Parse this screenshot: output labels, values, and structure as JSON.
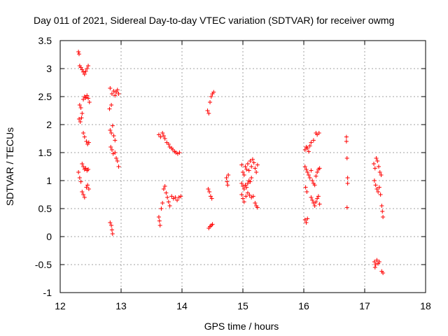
{
  "chart_data": {
    "type": "scatter",
    "title": "Day 011 of 2021, Sidereal Day-to-day VTEC variation (SDTVAR) for receiver owmg",
    "xlabel": "GPS time / hours",
    "ylabel": "SDTVAR / TECUs",
    "xlim": [
      12,
      18
    ],
    "ylim": [
      -1,
      3.5
    ],
    "xticks": [
      12,
      13,
      14,
      15,
      16,
      17,
      18
    ],
    "xtick_labels": [
      "12",
      "13",
      "14",
      "15",
      "16",
      "17",
      "18"
    ],
    "yticks": [
      -1,
      -0.5,
      0,
      0.5,
      1,
      1.5,
      2,
      2.5,
      3,
      3.5
    ],
    "ytick_labels": [
      "-1",
      "-0.5",
      "0",
      "0.5",
      "1",
      "1.5",
      "2",
      "2.5",
      "3",
      "3.5"
    ],
    "grid": true,
    "marker": "+",
    "color": "#ff0000",
    "series": [
      {
        "name": "SDTVAR",
        "points": [
          [
            12.3,
            3.3
          ],
          [
            12.31,
            3.26
          ],
          [
            12.32,
            3.05
          ],
          [
            12.34,
            3.02
          ],
          [
            12.36,
            2.98
          ],
          [
            12.38,
            2.94
          ],
          [
            12.4,
            2.9
          ],
          [
            12.42,
            2.95
          ],
          [
            12.44,
            3.0
          ],
          [
            12.46,
            3.05
          ],
          [
            12.32,
            2.35
          ],
          [
            12.34,
            2.3
          ],
          [
            12.36,
            2.2
          ],
          [
            12.38,
            2.45
          ],
          [
            12.4,
            2.5
          ],
          [
            12.42,
            2.48
          ],
          [
            12.44,
            2.52
          ],
          [
            12.46,
            2.47
          ],
          [
            12.48,
            2.4
          ],
          [
            12.31,
            2.1
          ],
          [
            12.33,
            2.05
          ],
          [
            12.35,
            2.12
          ],
          [
            12.38,
            1.85
          ],
          [
            12.4,
            1.78
          ],
          [
            12.43,
            1.7
          ],
          [
            12.45,
            1.65
          ],
          [
            12.47,
            1.68
          ],
          [
            12.3,
            1.15
          ],
          [
            12.32,
            1.05
          ],
          [
            12.34,
            0.98
          ],
          [
            12.36,
            1.3
          ],
          [
            12.38,
            1.25
          ],
          [
            12.4,
            1.2
          ],
          [
            12.42,
            1.22
          ],
          [
            12.44,
            1.18
          ],
          [
            12.46,
            1.2
          ],
          [
            12.36,
            0.8
          ],
          [
            12.38,
            0.75
          ],
          [
            12.4,
            0.7
          ],
          [
            12.43,
            0.88
          ],
          [
            12.45,
            0.92
          ],
          [
            12.47,
            0.85
          ],
          [
            12.82,
            2.65
          ],
          [
            12.85,
            2.55
          ],
          [
            12.88,
            2.6
          ],
          [
            12.9,
            2.52
          ],
          [
            12.92,
            2.58
          ],
          [
            12.94,
            2.62
          ],
          [
            12.96,
            2.55
          ],
          [
            12.84,
            2.35
          ],
          [
            12.81,
            2.28
          ],
          [
            12.82,
            1.9
          ],
          [
            12.84,
            1.85
          ],
          [
            12.86,
            1.98
          ],
          [
            12.88,
            1.8
          ],
          [
            12.9,
            1.72
          ],
          [
            12.83,
            1.6
          ],
          [
            12.85,
            1.55
          ],
          [
            12.87,
            1.48
          ],
          [
            12.9,
            1.5
          ],
          [
            12.92,
            1.4
          ],
          [
            12.94,
            1.35
          ],
          [
            12.96,
            1.25
          ],
          [
            12.82,
            0.25
          ],
          [
            12.84,
            0.2
          ],
          [
            12.85,
            0.12
          ],
          [
            12.86,
            0.05
          ],
          [
            13.62,
            1.82
          ],
          [
            13.65,
            1.78
          ],
          [
            13.68,
            1.85
          ],
          [
            13.7,
            1.8
          ],
          [
            13.72,
            1.75
          ],
          [
            13.75,
            1.68
          ],
          [
            13.78,
            1.65
          ],
          [
            13.8,
            1.6
          ],
          [
            13.83,
            1.58
          ],
          [
            13.85,
            1.55
          ],
          [
            13.88,
            1.52
          ],
          [
            13.9,
            1.5
          ],
          [
            13.93,
            1.48
          ],
          [
            13.96,
            1.5
          ],
          [
            13.62,
            0.35
          ],
          [
            13.63,
            0.28
          ],
          [
            13.64,
            0.2
          ],
          [
            13.66,
            0.5
          ],
          [
            13.68,
            0.6
          ],
          [
            13.7,
            0.85
          ],
          [
            13.72,
            0.9
          ],
          [
            13.74,
            0.78
          ],
          [
            13.76,
            0.7
          ],
          [
            13.78,
            0.62
          ],
          [
            13.8,
            0.55
          ],
          [
            13.83,
            0.72
          ],
          [
            13.86,
            0.68
          ],
          [
            13.89,
            0.7
          ],
          [
            13.92,
            0.65
          ],
          [
            13.95,
            0.7
          ],
          [
            13.98,
            0.72
          ],
          [
            14.42,
            2.25
          ],
          [
            14.44,
            2.2
          ],
          [
            14.46,
            2.4
          ],
          [
            14.48,
            2.5
          ],
          [
            14.5,
            2.55
          ],
          [
            14.52,
            2.58
          ],
          [
            14.43,
            0.85
          ],
          [
            14.45,
            0.8
          ],
          [
            14.47,
            0.72
          ],
          [
            14.49,
            0.68
          ],
          [
            14.44,
            0.15
          ],
          [
            14.46,
            0.18
          ],
          [
            14.48,
            0.2
          ],
          [
            14.5,
            0.22
          ],
          [
            14.73,
            1.05
          ],
          [
            14.74,
            0.98
          ],
          [
            14.75,
            0.92
          ],
          [
            14.76,
            1.1
          ],
          [
            14.98,
            1.28
          ],
          [
            15.0,
            1.15
          ],
          [
            15.02,
            1.1
          ],
          [
            15.04,
            1.25
          ],
          [
            15.06,
            1.2
          ],
          [
            15.08,
            1.3
          ],
          [
            15.1,
            1.18
          ],
          [
            15.12,
            1.35
          ],
          [
            15.14,
            1.25
          ],
          [
            15.16,
            1.38
          ],
          [
            15.18,
            1.32
          ],
          [
            15.2,
            1.22
          ],
          [
            15.22,
            1.15
          ],
          [
            15.24,
            1.28
          ],
          [
            14.98,
            0.95
          ],
          [
            15.0,
            0.9
          ],
          [
            15.02,
            0.85
          ],
          [
            15.04,
            0.92
          ],
          [
            15.06,
            0.88
          ],
          [
            15.08,
            0.95
          ],
          [
            15.1,
            1.0
          ],
          [
            15.12,
            0.98
          ],
          [
            15.14,
            1.05
          ],
          [
            14.98,
            0.75
          ],
          [
            15.0,
            0.68
          ],
          [
            15.02,
            0.62
          ],
          [
            15.05,
            0.72
          ],
          [
            15.08,
            0.78
          ],
          [
            15.11,
            0.74
          ],
          [
            15.14,
            0.7
          ],
          [
            15.17,
            0.72
          ],
          [
            15.2,
            0.6
          ],
          [
            15.22,
            0.55
          ],
          [
            15.24,
            0.52
          ],
          [
            16.02,
            1.55
          ],
          [
            16.04,
            1.6
          ],
          [
            16.06,
            1.58
          ],
          [
            16.08,
            1.52
          ],
          [
            16.1,
            1.62
          ],
          [
            16.12,
            1.68
          ],
          [
            16.16,
            1.72
          ],
          [
            16.2,
            1.85
          ],
          [
            16.22,
            1.82
          ],
          [
            16.25,
            1.85
          ],
          [
            16.02,
            1.25
          ],
          [
            16.04,
            1.2
          ],
          [
            16.06,
            1.15
          ],
          [
            16.08,
            1.1
          ],
          [
            16.1,
            1.05
          ],
          [
            16.12,
            1.18
          ],
          [
            16.14,
            1.0
          ],
          [
            16.16,
            0.95
          ],
          [
            16.18,
            0.92
          ],
          [
            16.2,
            1.08
          ],
          [
            16.22,
            1.15
          ],
          [
            16.24,
            1.2
          ],
          [
            16.26,
            1.22
          ],
          [
            16.03,
            0.88
          ],
          [
            16.05,
            0.8
          ],
          [
            16.12,
            0.7
          ],
          [
            16.14,
            0.65
          ],
          [
            16.16,
            0.6
          ],
          [
            16.18,
            0.55
          ],
          [
            16.2,
            0.62
          ],
          [
            16.22,
            0.68
          ],
          [
            16.24,
            0.72
          ],
          [
            16.26,
            0.58
          ],
          [
            16.02,
            0.3
          ],
          [
            16.04,
            0.25
          ],
          [
            16.06,
            0.32
          ],
          [
            16.7,
            1.78
          ],
          [
            16.7,
            1.7
          ],
          [
            16.71,
            1.4
          ],
          [
            16.72,
            1.05
          ],
          [
            16.72,
            0.95
          ],
          [
            16.71,
            0.52
          ],
          [
            17.15,
            1.3
          ],
          [
            17.17,
            1.22
          ],
          [
            17.19,
            1.4
          ],
          [
            17.21,
            1.35
          ],
          [
            17.23,
            1.25
          ],
          [
            17.25,
            1.15
          ],
          [
            17.27,
            1.1
          ],
          [
            17.16,
            1.0
          ],
          [
            17.18,
            0.92
          ],
          [
            17.2,
            0.85
          ],
          [
            17.22,
            0.8
          ],
          [
            17.24,
            0.88
          ],
          [
            17.26,
            0.75
          ],
          [
            17.28,
            0.55
          ],
          [
            17.29,
            0.45
          ],
          [
            17.3,
            0.35
          ],
          [
            17.16,
            -0.45
          ],
          [
            17.18,
            -0.5
          ],
          [
            17.2,
            -0.42
          ],
          [
            17.22,
            -0.48
          ],
          [
            17.24,
            -0.45
          ],
          [
            17.17,
            -0.55
          ],
          [
            17.28,
            -0.62
          ],
          [
            17.3,
            -0.65
          ]
        ]
      }
    ]
  }
}
